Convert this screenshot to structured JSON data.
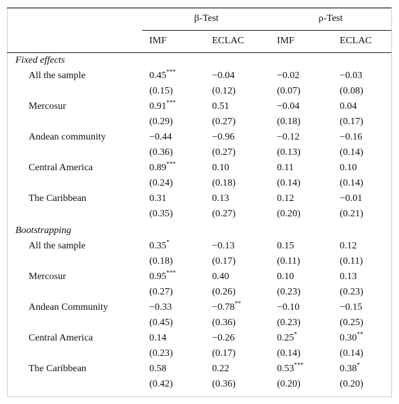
{
  "header": {
    "groups": [
      "β-Test",
      "ρ-Test"
    ],
    "columns": [
      "IMF",
      "ECLAC",
      "IMF",
      "ECLAC"
    ]
  },
  "sections": [
    {
      "title": "Fixed effects",
      "rows": [
        {
          "label": "All the sample",
          "estimates": [
            {
              "value": "0.45",
              "stars": "***"
            },
            {
              "value": "−0.04"
            },
            {
              "value": "−0.02"
            },
            {
              "value": "−0.03"
            }
          ],
          "errors": [
            "(0.15)",
            "(0.12)",
            "(0.07)",
            "(0.08)"
          ]
        },
        {
          "label": "Mercosur",
          "estimates": [
            {
              "value": "0.91",
              "stars": "***"
            },
            {
              "value": "0.51"
            },
            {
              "value": "−0.04"
            },
            {
              "value": "0.04"
            }
          ],
          "errors": [
            "(0.29)",
            "(0.27)",
            "(0.18)",
            "(0.17)"
          ]
        },
        {
          "label": "Andean community",
          "estimates": [
            {
              "value": "−0.44"
            },
            {
              "value": "−0.96"
            },
            {
              "value": "−0.12"
            },
            {
              "value": "−0.16"
            }
          ],
          "errors": [
            "(0.36)",
            "(0.27)",
            "(0.13)",
            "(0.14)"
          ]
        },
        {
          "label": "Central America",
          "estimates": [
            {
              "value": "0.89",
              "stars": "***"
            },
            {
              "value": "0.10"
            },
            {
              "value": "0.11"
            },
            {
              "value": "0.10"
            }
          ],
          "errors": [
            "(0.24)",
            "(0.18)",
            "(0.14)",
            "(0.14)"
          ]
        },
        {
          "label": "The Caribbean",
          "estimates": [
            {
              "value": "0.31"
            },
            {
              "value": "0.13"
            },
            {
              "value": "0.12"
            },
            {
              "value": "−0.01"
            }
          ],
          "errors": [
            "(0.35)",
            "(0.27)",
            "(0.20)",
            "(0.21)"
          ]
        }
      ]
    },
    {
      "title": "Bootstrapping",
      "rows": [
        {
          "label": "All the sample",
          "estimates": [
            {
              "value": "0.35",
              "stars": "*"
            },
            {
              "value": "−0.13"
            },
            {
              "value": "0.15"
            },
            {
              "value": "0.12"
            }
          ],
          "errors": [
            "(0.18)",
            "(0.17)",
            "(0.11)",
            "(0.11)"
          ]
        },
        {
          "label": "Mercosur",
          "estimates": [
            {
              "value": "0.95",
              "stars": "***"
            },
            {
              "value": "0.40"
            },
            {
              "value": "0.10"
            },
            {
              "value": "0.13"
            }
          ],
          "errors": [
            "(0.27)",
            "(0.26)",
            "(0.23)",
            "(0.23)"
          ]
        },
        {
          "label": "Andean Community",
          "estimates": [
            {
              "value": "−0.33"
            },
            {
              "value": "−0.78",
              "stars": "**"
            },
            {
              "value": "−0.10"
            },
            {
              "value": "−0.15"
            }
          ],
          "errors": [
            "(0.45)",
            "(0.36)",
            "(0.23)",
            "(0.25)"
          ]
        },
        {
          "label": "Central America",
          "estimates": [
            {
              "value": "0.14"
            },
            {
              "value": "−0.26"
            },
            {
              "value": "0.25",
              "stars": "*"
            },
            {
              "value": "0.30",
              "stars": "**"
            }
          ],
          "errors": [
            "(0.23)",
            "(0.17)",
            "(0.14)",
            "(0.14)"
          ]
        },
        {
          "label": "The Caribbean",
          "estimates": [
            {
              "value": "0.58"
            },
            {
              "value": "0.22"
            },
            {
              "value": "0.53",
              "stars": "***"
            },
            {
              "value": "0.38",
              "stars": "*"
            }
          ],
          "errors": [
            "(0.42)",
            "(0.36)",
            "(0.20)",
            "(0.20)"
          ]
        }
      ]
    }
  ]
}
